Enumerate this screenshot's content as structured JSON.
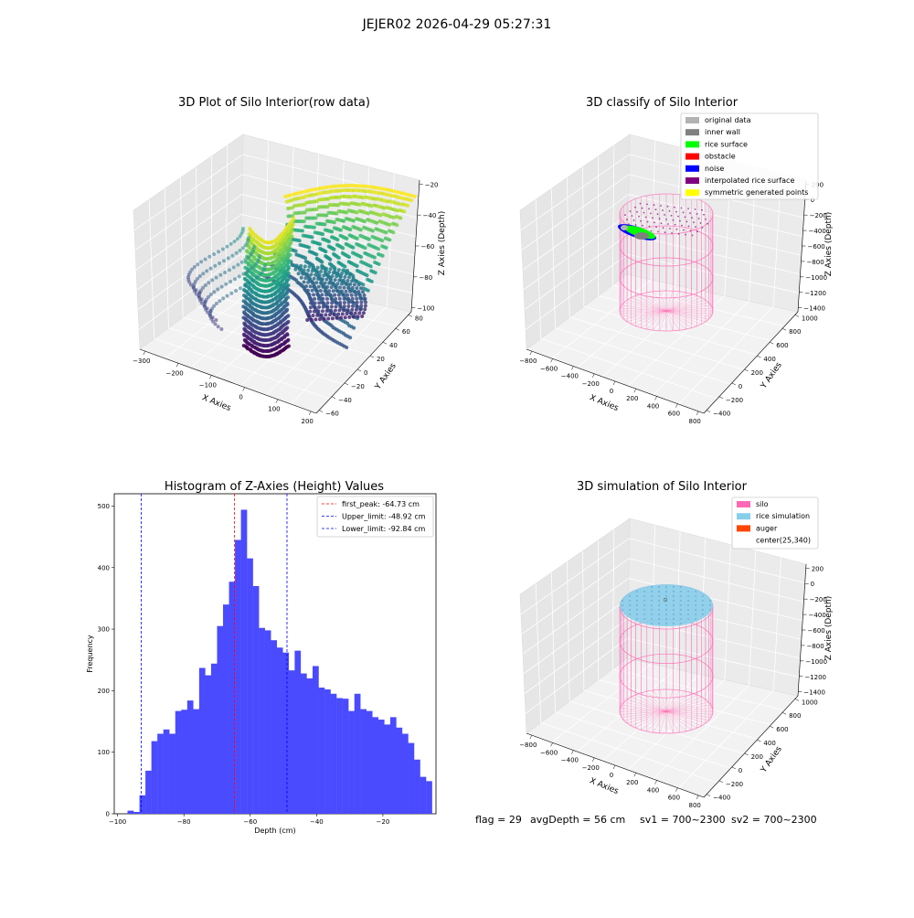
{
  "figure": {
    "suptitle": "JEJER02 2026-04-29 05:27:31",
    "status": {
      "flag": "flag = 29",
      "avg_depth": "avgDepth = 56 cm",
      "sv1": "sv1 = 700~2300",
      "sv2": "sv2 = 700~2300"
    }
  },
  "chart_data": [
    {
      "id": "raw",
      "type": "scatter",
      "projection": "3d",
      "title": "3D Plot of Silo Interior(row data)",
      "xlabel": "X Axies",
      "ylabel": "Y Axies",
      "zlabel": "Z Axies (Depth)",
      "x_ticks": [
        "−300",
        "−200",
        "−100",
        "0",
        "100",
        "200"
      ],
      "y_ticks": [
        "−60",
        "−40",
        "−20",
        "0",
        "20",
        "40",
        "60",
        "80"
      ],
      "z_ticks": [
        "−100",
        "−80",
        "−60",
        "−40",
        "−20"
      ],
      "xlim": [
        -310,
        210
      ],
      "ylim": [
        -70,
        90
      ],
      "zlim": [
        -105,
        -15
      ],
      "colormap": "viridis",
      "grid": true
    },
    {
      "id": "classify",
      "type": "scatter",
      "projection": "3d",
      "title": "3D classify of Silo Interior",
      "xlabel": "X Axies",
      "ylabel": "Y Axies",
      "zlabel": "Z Axies (Depth)",
      "x_ticks": [
        "−800",
        "−600",
        "−400",
        "−200",
        "0",
        "200",
        "400",
        "600",
        "800"
      ],
      "y_ticks": [
        "−400",
        "−200",
        "0",
        "200",
        "400",
        "600",
        "800",
        "1000"
      ],
      "z_ticks": [
        "−1400",
        "−1200",
        "−1000",
        "−800",
        "−600",
        "−400",
        "−200",
        "0",
        "200"
      ],
      "legend_position": "top-right",
      "legend": [
        {
          "label": "original data",
          "color": "#b3b3b3"
        },
        {
          "label": "inner wall",
          "color": "#808080"
        },
        {
          "label": "rice surface",
          "color": "#00ff00"
        },
        {
          "label": "obstacle",
          "color": "#ff0000"
        },
        {
          "label": "noise",
          "color": "#0000ff"
        },
        {
          "label": "interpolated rice surface",
          "color": "#800080"
        },
        {
          "label": "symmetric generated points",
          "color": "#ffff00"
        }
      ],
      "grid": true
    },
    {
      "id": "hist",
      "type": "bar",
      "title": "Histogram of Z-Axies (Height) Values",
      "xlabel": "Depth (cm)",
      "ylabel": "Frequency",
      "xlim": [
        -101,
        -4
      ],
      "ylim": [
        0,
        520
      ],
      "x_ticks": [
        -100,
        -80,
        -60,
        -40,
        -20
      ],
      "y_ticks": [
        0,
        100,
        200,
        300,
        400,
        500
      ],
      "bar_color": "#4a4aff",
      "bin_start": -97.0,
      "bin_width": 1.8,
      "values": [
        5,
        3,
        30,
        70,
        118,
        130,
        137,
        130,
        167,
        169,
        184,
        170,
        237,
        225,
        244,
        305,
        340,
        377,
        445,
        494,
        415,
        370,
        302,
        298,
        282,
        270,
        262,
        233,
        265,
        228,
        220,
        240,
        205,
        202,
        195,
        188,
        187,
        167,
        195,
        170,
        167,
        157,
        153,
        145,
        157,
        140,
        130,
        115,
        88,
        60,
        53
      ],
      "lines": [
        {
          "label": "first_peak: -64.73 cm",
          "x": -64.73,
          "color": "#ff0000"
        },
        {
          "label": "Upper_limit: -48.92 cm",
          "x": -48.92,
          "color": "#0000ff"
        },
        {
          "label": "Lower_limit: -92.84 cm",
          "x": -92.84,
          "color": "#0000ff"
        }
      ],
      "legend_position": "top-right"
    },
    {
      "id": "simulation",
      "type": "scatter",
      "projection": "3d",
      "title": "3D simulation of Silo Interior",
      "xlabel": "X Axies",
      "ylabel": "Y Axies",
      "zlabel": "Z Axies (Depth)",
      "x_ticks": [
        "−800",
        "−600",
        "−400",
        "−200",
        "0",
        "200",
        "400",
        "600",
        "800"
      ],
      "y_ticks": [
        "−400",
        "−200",
        "0",
        "200",
        "400",
        "600",
        "800",
        "1000"
      ],
      "z_ticks": [
        "−1400",
        "−1200",
        "−1000",
        "−800",
        "−600",
        "−400",
        "−200",
        "0",
        "200"
      ],
      "legend_position": "top-right",
      "legend": [
        {
          "label": "silo",
          "color": "#ff69b4"
        },
        {
          "label": "rice simulation",
          "color": "#87ceeb"
        },
        {
          "label": "auger",
          "color": "#ff4500"
        },
        {
          "label": "center(25,340)",
          "color": ""
        }
      ],
      "grid": true
    }
  ]
}
